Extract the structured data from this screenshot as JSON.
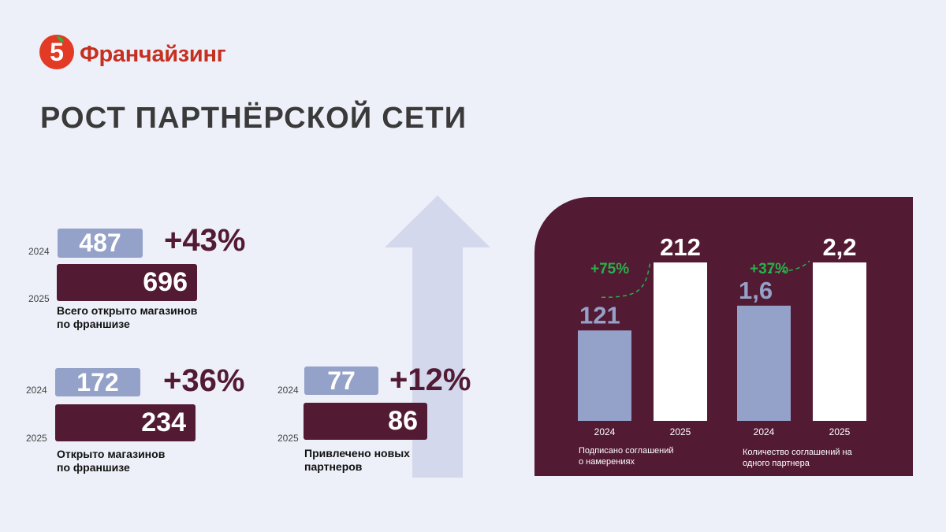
{
  "brand": {
    "logo_digit": "5",
    "name": "Франчайзинг",
    "logo_color": "#e23a25"
  },
  "title": "РОСТ ПАРТНЁРСКОЙ СЕТИ",
  "colors": {
    "bar_2024": "#94a1c8",
    "bar_2025": "#521a33",
    "growth_green": "#27b24a",
    "background": "#eef0f9",
    "arrow": "#d4d8ec"
  },
  "metrics": [
    {
      "year_a": "2024",
      "value_a": "487",
      "year_b": "2025",
      "value_b": "696",
      "growth": "+43%",
      "label_line1": "Всего открыто магазинов",
      "label_line2": "по франшизе"
    },
    {
      "year_a": "2024",
      "value_a": "172",
      "year_b": "2025",
      "value_b": "234",
      "growth": "+36%",
      "label_line1": "Открыто магазинов",
      "label_line2": "по франшизе"
    },
    {
      "year_a": "2024",
      "value_a": "77",
      "year_b": "2025",
      "value_b": "86",
      "growth": "+12%",
      "label_line1": "Привлечено новых",
      "label_line2": "партнеров"
    }
  ],
  "chart_data": [
    {
      "type": "bar",
      "categories": [
        "2024",
        "2025"
      ],
      "values": [
        121,
        212
      ],
      "value_labels": [
        "121",
        "212"
      ],
      "growth": "+75%",
      "label_line1": "Подписано соглашений",
      "label_line2": "о намерениях",
      "ylim": [
        0,
        212
      ]
    },
    {
      "type": "bar",
      "categories": [
        "2024",
        "2025"
      ],
      "values": [
        1.6,
        2.2
      ],
      "value_labels": [
        "1,6",
        "2,2"
      ],
      "growth": "+37%",
      "label_line1": "Количество соглашений на",
      "label_line2": "одного партнера",
      "ylim": [
        0,
        2.2
      ]
    }
  ]
}
